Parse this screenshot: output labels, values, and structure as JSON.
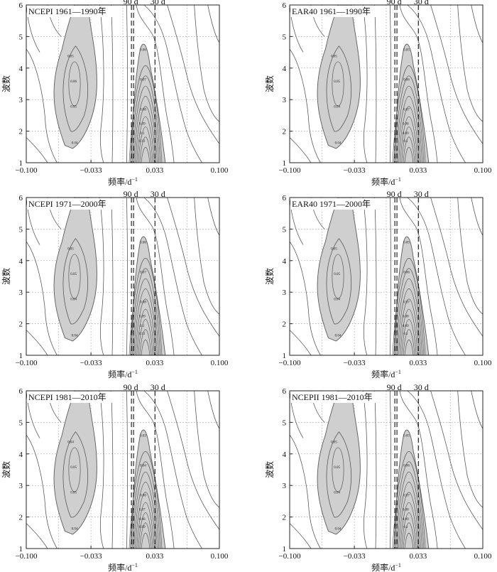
{
  "figure": {
    "colors": {
      "shade": "#cfcfcf",
      "contour": "#5a5a5a",
      "grid": "#9c9c9c",
      "frame": "#222222"
    }
  },
  "chart_data": [
    {
      "type": "contour",
      "panel_label": "NCEPI  1961—1990年",
      "period_labels": [
        "90 d",
        "30 d"
      ],
      "xlabel": "频率/d",
      "xlabel_sup": "−1",
      "ylabel": "波数",
      "xlim": [
        -0.1,
        0.1
      ],
      "ylim": [
        1,
        6
      ],
      "xticks": [
        -0.1,
        -0.033,
        0.033,
        0.1
      ],
      "xtick_labels": [
        "−0.100",
        "−0.033",
        "0.033",
        "0.100"
      ],
      "yticks": [
        1,
        2,
        3,
        4,
        5,
        6
      ],
      "ytick_labels": [
        "1",
        "2",
        "3",
        "4",
        "5",
        "6"
      ],
      "period_lines_freq": [
        0.0111,
        0.0333
      ],
      "contour_labels": [
        "0.05",
        "0.06",
        "0.05",
        "0.04",
        "0.06",
        "0.07",
        "0.08",
        "0.09",
        "0.1",
        "0.11"
      ]
    },
    {
      "type": "contour",
      "panel_label": "EAR40  1961—1990年",
      "period_labels": [
        "90 d",
        "30 d"
      ],
      "xlabel": "频率/d",
      "xlabel_sup": "−1",
      "ylabel": "波数",
      "xlim": [
        -0.1,
        0.1
      ],
      "ylim": [
        1,
        6
      ],
      "xticks": [
        -0.1,
        -0.033,
        0.033,
        0.1
      ],
      "xtick_labels": [
        "−0.100",
        "−0.033",
        "0.033",
        "0.100"
      ],
      "yticks": [
        1,
        2,
        3,
        4,
        5,
        6
      ],
      "ytick_labels": [
        "1",
        "2",
        "3",
        "4",
        "5",
        "6"
      ],
      "period_lines_freq": [
        0.0111,
        0.0333
      ],
      "contour_labels": [
        "0.05",
        "0.05",
        "0.04",
        "0.04",
        "0.05",
        "0.06",
        "0.07",
        "0.08",
        "0.09",
        "0.1"
      ]
    },
    {
      "type": "contour",
      "panel_label": "NCEPI  1971—2000年",
      "period_labels": [
        "90 d",
        "30 d"
      ],
      "xlabel": "频率/d",
      "xlabel_sup": "−1",
      "ylabel": "波数",
      "xlim": [
        -0.1,
        0.1
      ],
      "ylim": [
        1,
        6
      ],
      "xticks": [
        -0.1,
        -0.033,
        0.033,
        0.1
      ],
      "xtick_labels": [
        "−0.100",
        "−0.033",
        "0.033",
        "0.100"
      ],
      "yticks": [
        1,
        2,
        3,
        4,
        5,
        6
      ],
      "ytick_labels": [
        "1",
        "2",
        "3",
        "4",
        "5",
        "6"
      ],
      "period_lines_freq": [
        0.0111,
        0.0333
      ],
      "contour_labels": [
        "0.05",
        "0.05",
        "0.04",
        "0.04",
        "0.06",
        "0.07",
        "0.08",
        "0.09",
        "0.1",
        "0.11"
      ]
    },
    {
      "type": "contour",
      "panel_label": "EAR40  1971—2000年",
      "period_labels": [
        "90 d",
        "30 d"
      ],
      "xlabel": "频率/d",
      "xlabel_sup": "−1",
      "ylabel": "波数",
      "xlim": [
        -0.1,
        0.1
      ],
      "ylim": [
        1,
        6
      ],
      "xticks": [
        -0.1,
        -0.033,
        0.033,
        0.1
      ],
      "xtick_labels": [
        "−0.100",
        "−0.033",
        "0.033",
        "0.100"
      ],
      "yticks": [
        1,
        2,
        3,
        4,
        5,
        6
      ],
      "ytick_labels": [
        "1",
        "2",
        "3",
        "4",
        "5",
        "6"
      ],
      "period_lines_freq": [
        0.0111,
        0.0333
      ],
      "contour_labels": [
        "0.05",
        "0.05",
        "0.04",
        "0.04",
        "0.05",
        "0.06",
        "0.07",
        "0.08",
        "0.09",
        "0.1"
      ]
    },
    {
      "type": "contour",
      "panel_label": "NCEPI  1981—2010年",
      "period_labels": [
        "90 d",
        "30 d"
      ],
      "xlabel": "频率/d",
      "xlabel_sup": "−1",
      "ylabel": "波数",
      "xlim": [
        -0.1,
        0.1
      ],
      "ylim": [
        1,
        6
      ],
      "xticks": [
        -0.1,
        -0.033,
        0.033,
        0.1
      ],
      "xtick_labels": [
        "−0.100",
        "−0.033",
        "0.033",
        "0.100"
      ],
      "yticks": [
        1,
        2,
        3,
        4,
        5,
        6
      ],
      "ytick_labels": [
        "1",
        "2",
        "3",
        "4",
        "5",
        "6"
      ],
      "period_lines_freq": [
        0.0111,
        0.0333
      ],
      "contour_labels": [
        "0.04",
        "0.05",
        "0.05",
        "0.04",
        "0.03",
        "0.04",
        "0.06",
        "0.07",
        "0.08",
        "0.09"
      ]
    },
    {
      "type": "contour",
      "panel_label": "NCEPII  1981—2010年",
      "period_labels": [
        "90 d",
        "30 d"
      ],
      "xlabel": "频率/d",
      "xlabel_sup": "−1",
      "ylabel": "波数",
      "xlim": [
        -0.1,
        0.1
      ],
      "ylim": [
        1,
        6
      ],
      "xticks": [
        -0.1,
        -0.033,
        0.033,
        0.1
      ],
      "xtick_labels": [
        "−0.100",
        "−0.033",
        "0.033",
        "0.100"
      ],
      "yticks": [
        1,
        2,
        3,
        4,
        5,
        6
      ],
      "ytick_labels": [
        "1",
        "2",
        "3",
        "4",
        "5",
        "6"
      ],
      "period_lines_freq": [
        0.0111,
        0.0333
      ],
      "contour_labels": [
        "0.05",
        "0.05",
        "0.04",
        "0.04",
        "0.05",
        "0.06",
        "0.07",
        "0.08",
        "0.09",
        "0.1"
      ]
    }
  ]
}
